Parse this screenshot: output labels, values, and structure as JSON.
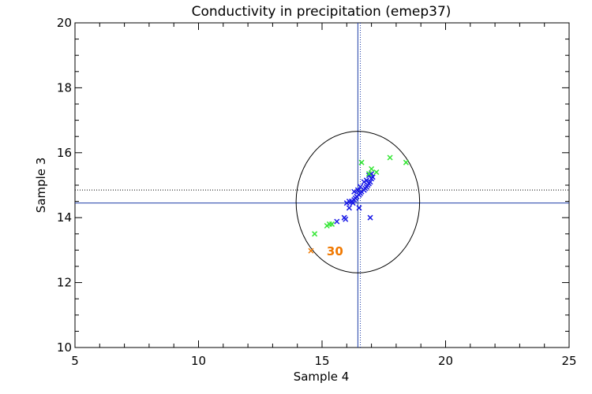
{
  "chart_data": {
    "type": "scatter",
    "title": "Conductivity in precipitation (emep37)",
    "xlabel": "Sample 4",
    "ylabel": "Sample 3",
    "xlim": [
      5,
      25
    ],
    "ylim": [
      10,
      20
    ],
    "x_ticks": [
      5,
      10,
      15,
      20,
      25
    ],
    "x_minor_step": 1,
    "y_ticks": [
      10,
      12,
      14,
      16,
      18,
      20
    ],
    "y_minor_step": 0.5,
    "marker": "x",
    "reference_lines": {
      "x_solid": 16.45,
      "x_dotted": 16.55,
      "y_solid": 14.45,
      "y_dotted": 14.85,
      "solid_color": "#1f3fa8",
      "dotted_color": "#000000"
    },
    "ellipse": {
      "center_x": 16.45,
      "center_y": 14.48,
      "radius_x": 2.5,
      "radius_y": 2.18,
      "color": "#000000"
    },
    "series": [
      {
        "name": "blue",
        "color": "#1a1ae6",
        "points": [
          [
            16.0,
            14.45
          ],
          [
            16.1,
            14.5
          ],
          [
            16.2,
            14.5
          ],
          [
            16.3,
            14.55
          ],
          [
            16.35,
            14.6
          ],
          [
            16.4,
            14.65
          ],
          [
            16.5,
            14.7
          ],
          [
            16.55,
            14.75
          ],
          [
            16.6,
            14.8
          ],
          [
            16.7,
            14.85
          ],
          [
            16.75,
            14.9
          ],
          [
            16.8,
            14.95
          ],
          [
            16.85,
            15.0
          ],
          [
            16.9,
            15.05
          ],
          [
            16.95,
            15.1
          ],
          [
            17.0,
            15.2
          ],
          [
            17.05,
            15.25
          ],
          [
            17.0,
            15.35
          ],
          [
            16.7,
            15.1
          ],
          [
            16.8,
            15.15
          ],
          [
            16.9,
            15.3
          ],
          [
            16.3,
            14.8
          ],
          [
            16.2,
            14.5
          ],
          [
            16.1,
            14.3
          ],
          [
            15.9,
            14.0
          ],
          [
            15.95,
            13.95
          ],
          [
            15.6,
            13.88
          ],
          [
            16.5,
            14.3
          ],
          [
            16.95,
            14.0
          ],
          [
            16.55,
            14.95
          ],
          [
            16.45,
            14.85
          ],
          [
            16.25,
            14.45
          ]
        ]
      },
      {
        "name": "green",
        "color": "#33e633",
        "points": [
          [
            16.6,
            15.7
          ],
          [
            17.0,
            15.5
          ],
          [
            17.2,
            15.4
          ],
          [
            17.75,
            15.85
          ],
          [
            18.4,
            15.7
          ],
          [
            15.3,
            13.8
          ],
          [
            15.2,
            13.75
          ],
          [
            14.7,
            13.5
          ],
          [
            16.9,
            15.35
          ],
          [
            15.4,
            13.8
          ]
        ]
      },
      {
        "name": "orange",
        "color": "#f07800",
        "points": [
          [
            14.55,
            12.98
          ]
        ]
      }
    ],
    "annotations": [
      {
        "text": "30",
        "x": 14.55,
        "y": 12.98,
        "color": "#f07800"
      }
    ]
  }
}
